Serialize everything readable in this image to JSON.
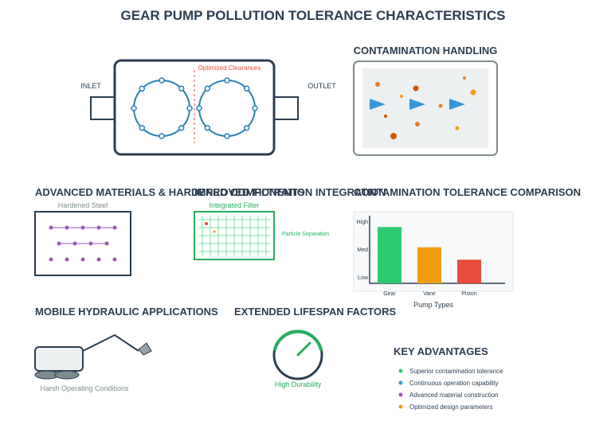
{
  "title": "GEAR PUMP POLLUTION TOLERANCE CHARACTERISTICS",
  "gear_pump": {
    "inlet_label": "INLET",
    "outlet_label": "OUTLET",
    "clearance_label": "Optimized Clearances"
  },
  "contamination": {
    "title": "CONTAMINATION HANDLING"
  },
  "materials": {
    "title": "ADVANCED MATERIALS & HARDENED COMPONENTS",
    "hardened_label": "Hardened Steel"
  },
  "filtration": {
    "title": "IMPROVED FILTRATION INTEGRATION",
    "filter_label": "Integrated Filter",
    "separation_label": "Particle Separation"
  },
  "comparison": {
    "title": "CONTAMINATION TOLERANCE COMPARISON",
    "xlabel": "Pump Types"
  },
  "chart_data": {
    "type": "bar",
    "categories": [
      "Gear",
      "Vane",
      "Piston"
    ],
    "values": [
      2.5,
      1.6,
      1.05
    ],
    "y_tick_labels": [
      "High",
      "Med",
      "Low"
    ],
    "colors": [
      "#2ecc71",
      "#f39c12",
      "#e74c3c"
    ],
    "title": "CONTAMINATION TOLERANCE COMPARISON",
    "xlabel": "Pump Types",
    "ylabel": "",
    "ylim": [
      0,
      3
    ],
    "grid": false
  },
  "mobile": {
    "title": "MOBILE HYDRAULIC APPLICATIONS",
    "conditions_label": "Harsh Operating Conditions"
  },
  "lifespan": {
    "title": "EXTENDED LIFESPAN FACTORS",
    "gauge_label": "High Durability"
  },
  "advantages": {
    "title": "KEY ADVANTAGES",
    "items": [
      {
        "label": "Superior contamination tolerance",
        "color": "#2ecc71"
      },
      {
        "label": "Continuous operation capability",
        "color": "#3498db"
      },
      {
        "label": "Advanced material construction",
        "color": "#9b59b6"
      },
      {
        "label": "Optimized design parameters",
        "color": "#f39c12"
      }
    ]
  }
}
